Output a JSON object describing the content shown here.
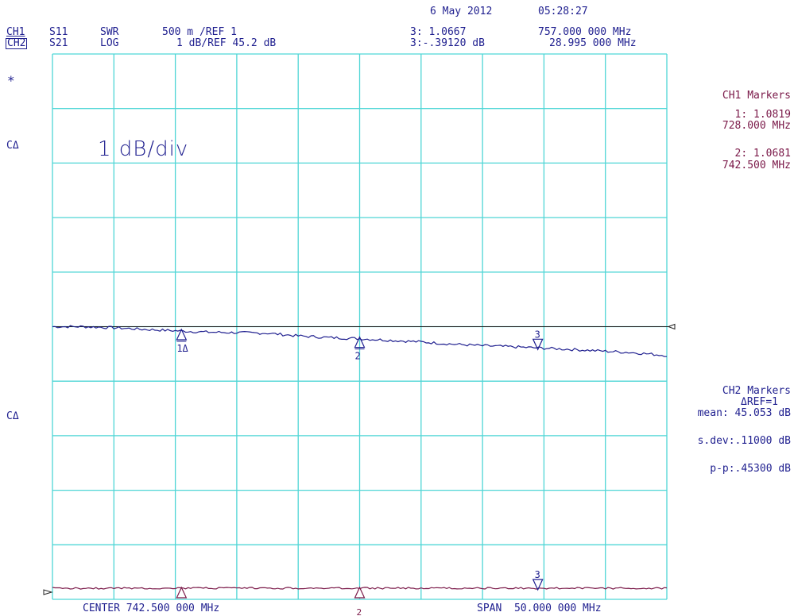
{
  "header": {
    "date": "6 May 2012",
    "time": "05:28:27",
    "ch1": {
      "label": "CH1",
      "param": "S11",
      "format": "SWR",
      "scale": "500 m /REF 1",
      "marker_value": "3: 1.0667",
      "marker_freq": "757.000 000 MHz"
    },
    "ch2": {
      "label": "CH2",
      "param": "S21",
      "format": "LOG",
      "scale": "1 dB/REF 45.2 dB",
      "marker_value": "3:-.39120 dB",
      "marker_freq": "28.995 000 MHz"
    }
  },
  "left_labels": {
    "star": "*",
    "ca_top": "CΔ",
    "ca_bottom": "CΔ"
  },
  "div_label": "1 dB/div",
  "ch1_markers": {
    "title": "CH1 Markers",
    "items": [
      {
        "value": "1: 1.0819",
        "freq": "728.000 MHz"
      },
      {
        "value": "2: 1.0681",
        "freq": "742.500 MHz"
      }
    ]
  },
  "ch2_markers": {
    "title": "CH2 Markers",
    "ref": "ΔREF=1",
    "mean": "mean: 45.053 dB",
    "sdev": "s.dev:.11000 dB",
    "pp": "p-p:.45300 dB"
  },
  "footer": {
    "center": "CENTER 742.500 000 MHz",
    "span": "SPAN  50.000 000 MHz"
  },
  "marker_labels": {
    "m1": "1Δ",
    "m2": "2",
    "m3": "3",
    "m2b": "2",
    "m3b": "3"
  },
  "chart_data": {
    "type": "line",
    "x_unit": "MHz",
    "xlim": [
      717.5,
      767.5
    ],
    "divisions": {
      "x": 10,
      "y": 10
    },
    "colors": {
      "grid": "#4fd6d6",
      "ch1": "#7a1848",
      "ch2": "#1f1f8f",
      "text": "#1f1f8f"
    },
    "series": [
      {
        "name": "CH2",
        "ylim": [
          40.2,
          50.2
        ],
        "reference": 45.2,
        "x": [
          717.5,
          720,
          722.5,
          725,
          728,
          730,
          732.5,
          735,
          737.5,
          740,
          742.5,
          745,
          747.5,
          750,
          752.5,
          755,
          757,
          760,
          762.5,
          765,
          767.5
        ],
        "y": [
          45.2,
          45.2,
          45.18,
          45.15,
          45.12,
          45.1,
          45.09,
          45.08,
          45.03,
          45.0,
          44.98,
          44.95,
          44.92,
          44.88,
          44.85,
          44.83,
          44.81,
          44.78,
          44.75,
          44.72,
          44.67
        ]
      },
      {
        "name": "CH1",
        "x": [
          717.5,
          767.5
        ],
        "y": [
          1.05,
          1.05
        ]
      }
    ],
    "markers": [
      {
        "label": "1Δ",
        "x": 728.0
      },
      {
        "label": "2",
        "x": 742.5
      },
      {
        "label": "3",
        "x": 757.0
      }
    ]
  }
}
